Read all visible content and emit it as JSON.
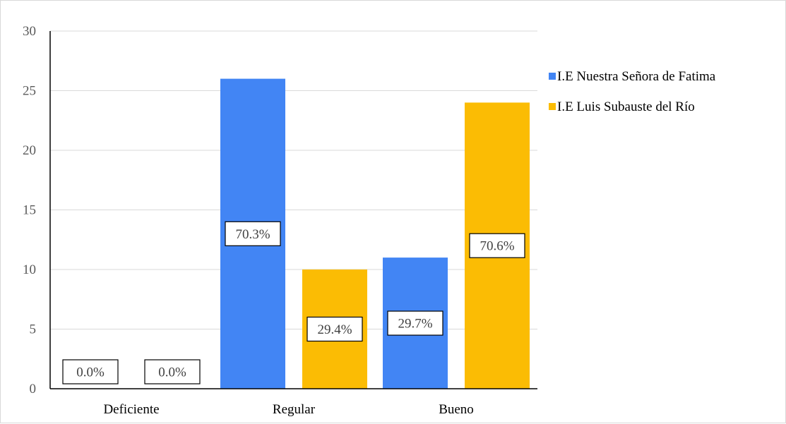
{
  "chart_data": {
    "type": "bar",
    "categories": [
      "Deficiente",
      "Regular",
      "Bueno"
    ],
    "series": [
      {
        "name": "I.E Nuestra Señora de Fatima",
        "color": "#4285f4",
        "values": [
          0,
          26,
          11
        ],
        "labels": [
          "0.0%",
          "70.3%",
          "29.7%"
        ]
      },
      {
        "name": "I.E Luis Subauste del Río",
        "color": "#fbbc04",
        "values": [
          0,
          10,
          24
        ],
        "labels": [
          "0.0%",
          "29.4%",
          "70.6%"
        ]
      }
    ],
    "ylim": [
      0,
      30
    ],
    "yticks": [
      0,
      5,
      10,
      15,
      20,
      25,
      30
    ],
    "grid": true,
    "legend": "right"
  }
}
